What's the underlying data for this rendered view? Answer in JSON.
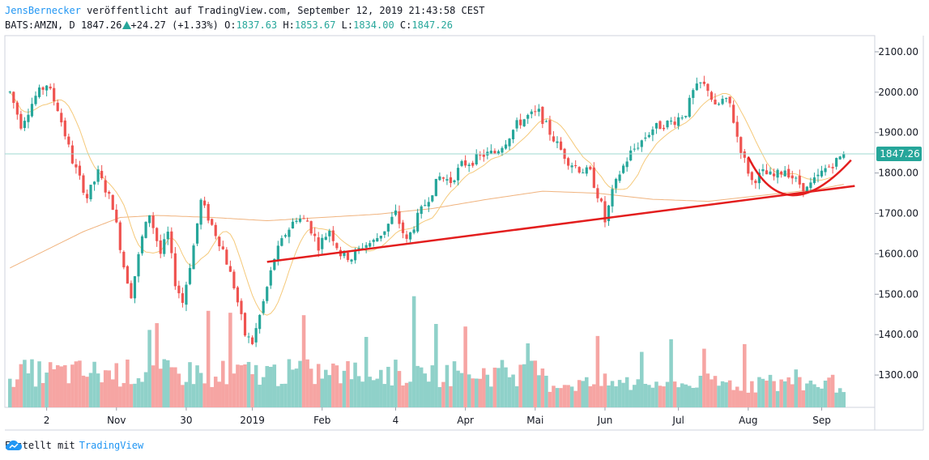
{
  "header": {
    "author": "JensBernecker",
    "published": "veröffentlicht auf TradingView.com, September 12, 2019 21:43:58 CEST",
    "symbol": "BATS:AMZN, D",
    "last": "1847.26",
    "change": "+24.27 (+1.33%)",
    "o_label": "O:",
    "o_value": "1837.63",
    "h_label": "H:",
    "h_value": "1853.67",
    "l_label": "L:",
    "l_value": "1834.00",
    "c_label": "C:",
    "c_value": "1847.26"
  },
  "footer": {
    "created_with": "Erstellt mit",
    "brand": "TradingView"
  },
  "colors": {
    "up": "#26a69a",
    "down": "#ef5350",
    "trend": "#e31e1e",
    "ma_fast": "#f5c97a",
    "ma_slow": "#f0b37e",
    "last_label_bg": "#26a69a"
  },
  "chart_data": {
    "type": "candlestick",
    "title": "BATS:AMZN, D",
    "ylim": [
      1220,
      2140
    ],
    "y_ticks": [
      1300,
      1400,
      1500,
      1600,
      1700,
      1800,
      1900,
      2000,
      2100
    ],
    "y_tick_labels": [
      "1300.00",
      "1400.00",
      "1500.00",
      "1600.00",
      "1700.00",
      "1800.00",
      "1900.00",
      "2000.00",
      "2100.00"
    ],
    "x_tick_labels": [
      "2",
      "Nov",
      "30",
      "2019",
      "Feb",
      "4",
      "Apr",
      "Mai",
      "Jun",
      "Jul",
      "Aug",
      "Sep"
    ],
    "x_tick_bars": [
      10,
      29,
      48,
      66,
      85,
      105,
      124,
      143,
      162,
      182,
      201,
      221
    ],
    "last_price": 1847.26,
    "last_price_label": "1847.26",
    "anchors": [
      [
        0,
        2000
      ],
      [
        3,
        1920
      ],
      [
        7,
        1990
      ],
      [
        10,
        2020
      ],
      [
        13,
        1960
      ],
      [
        17,
        1830
      ],
      [
        21,
        1740
      ],
      [
        24,
        1800
      ],
      [
        28,
        1720
      ],
      [
        31,
        1570
      ],
      [
        33,
        1500
      ],
      [
        36,
        1640
      ],
      [
        38,
        1700
      ],
      [
        41,
        1600
      ],
      [
        43,
        1650
      ],
      [
        45,
        1530
      ],
      [
        47,
        1480
      ],
      [
        50,
        1620
      ],
      [
        52,
        1730
      ],
      [
        55,
        1670
      ],
      [
        58,
        1610
      ],
      [
        61,
        1520
      ],
      [
        64,
        1400
      ],
      [
        66,
        1380
      ],
      [
        69,
        1480
      ],
      [
        72,
        1590
      ],
      [
        75,
        1650
      ],
      [
        78,
        1690
      ],
      [
        81,
        1680
      ],
      [
        84,
        1620
      ],
      [
        87,
        1660
      ],
      [
        90,
        1600
      ],
      [
        93,
        1590
      ],
      [
        96,
        1620
      ],
      [
        99,
        1630
      ],
      [
        102,
        1660
      ],
      [
        105,
        1700
      ],
      [
        108,
        1630
      ],
      [
        111,
        1690
      ],
      [
        114,
        1740
      ],
      [
        117,
        1790
      ],
      [
        120,
        1780
      ],
      [
        123,
        1820
      ],
      [
        126,
        1830
      ],
      [
        129,
        1845
      ],
      [
        132,
        1850
      ],
      [
        135,
        1880
      ],
      [
        138,
        1920
      ],
      [
        141,
        1940
      ],
      [
        144,
        1950
      ],
      [
        147,
        1900
      ],
      [
        149,
        1870
      ],
      [
        152,
        1830
      ],
      [
        155,
        1810
      ],
      [
        158,
        1800
      ],
      [
        161,
        1720
      ],
      [
        162,
        1680
      ],
      [
        164,
        1750
      ],
      [
        166,
        1800
      ],
      [
        169,
        1850
      ],
      [
        172,
        1880
      ],
      [
        175,
        1910
      ],
      [
        178,
        1920
      ],
      [
        181,
        1930
      ],
      [
        184,
        1950
      ],
      [
        186,
        2000
      ],
      [
        188,
        2020
      ],
      [
        190,
        2010
      ],
      [
        192,
        1960
      ],
      [
        194,
        1980
      ],
      [
        196,
        1970
      ],
      [
        198,
        1890
      ],
      [
        200,
        1830
      ],
      [
        202,
        1780
      ],
      [
        205,
        1800
      ],
      [
        208,
        1790
      ],
      [
        211,
        1810
      ],
      [
        214,
        1780
      ],
      [
        217,
        1760
      ],
      [
        219,
        1780
      ],
      [
        222,
        1810
      ],
      [
        225,
        1830
      ],
      [
        227,
        1847
      ]
    ],
    "ma_slow": [
      [
        0,
        1565
      ],
      [
        10,
        1610
      ],
      [
        20,
        1655
      ],
      [
        30,
        1690
      ],
      [
        40,
        1695
      ],
      [
        55,
        1690
      ],
      [
        70,
        1682
      ],
      [
        85,
        1690
      ],
      [
        100,
        1698
      ],
      [
        115,
        1712
      ],
      [
        130,
        1735
      ],
      [
        145,
        1755
      ],
      [
        160,
        1750
      ],
      [
        175,
        1735
      ],
      [
        190,
        1730
      ],
      [
        205,
        1745
      ],
      [
        220,
        1760
      ],
      [
        227,
        1772
      ]
    ],
    "annotations": {
      "trendline": {
        "from": [
          70,
          1580
        ],
        "to": [
          230,
          1768
        ]
      },
      "arc": {
        "from": [
          201,
          1840
        ],
        "vertex": [
          213,
          1745
        ],
        "to": [
          229,
          1832
        ]
      }
    }
  }
}
